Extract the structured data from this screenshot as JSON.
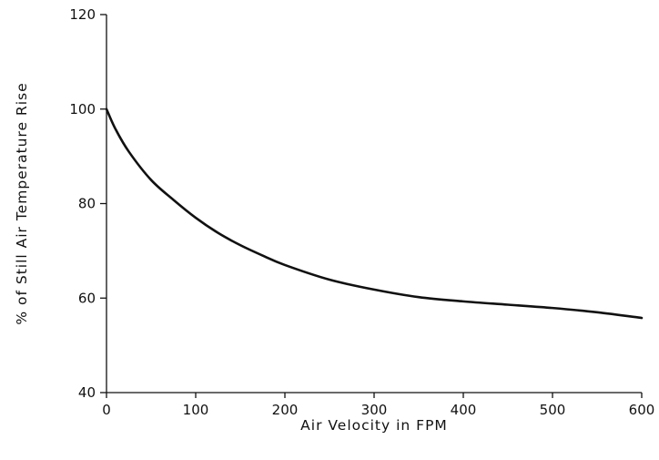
{
  "chart_data": {
    "type": "line",
    "title": "",
    "xlabel": "Air Velocity in FPM",
    "ylabel": "% of Still Air Temperature Rise",
    "xlim": [
      0,
      600
    ],
    "ylim": [
      40,
      120
    ],
    "x_ticks": [
      "0",
      "100",
      "200",
      "300",
      "400",
      "500",
      "600"
    ],
    "y_ticks": [
      "40",
      "60",
      "80",
      "100",
      "120"
    ],
    "grid": false,
    "legend": "none",
    "series": [
      {
        "x": [
          0,
          10,
          25,
          50,
          75,
          100,
          125,
          150,
          175,
          200,
          250,
          300,
          350,
          400,
          450,
          500,
          550,
          600
        ],
        "y": [
          100,
          95.8,
          91.0,
          85.0,
          80.8,
          77.0,
          73.8,
          71.2,
          69.0,
          67.0,
          63.9,
          61.8,
          60.2,
          59.3,
          58.6,
          57.9,
          57.0,
          55.8
        ]
      }
    ]
  }
}
